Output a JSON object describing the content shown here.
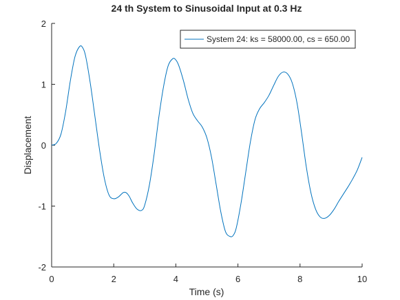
{
  "chart_data": {
    "type": "line",
    "title": "24 th System to Sinusoidal Input at 0.3 Hz",
    "xlabel": "Time (s)",
    "ylabel": "Displacement",
    "xlim": [
      0,
      10
    ],
    "ylim": [
      -2,
      2
    ],
    "xticks": [
      0,
      2,
      4,
      6,
      8,
      10
    ],
    "yticks": [
      -2,
      -1,
      0,
      1,
      2
    ],
    "xtick_labels": [
      "0",
      "2",
      "4",
      "6",
      "8",
      "10"
    ],
    "ytick_labels": [
      "-2",
      "-1",
      "0",
      "1",
      "2"
    ],
    "grid": false,
    "legend_position": "top-right",
    "series": [
      {
        "name": "System 24: ks = 58000.00, cs = 650.00",
        "color": "#0072bd",
        "x": [
          0,
          0.15,
          0.3,
          0.45,
          0.6,
          0.75,
          0.9,
          1.0,
          1.1,
          1.25,
          1.4,
          1.55,
          1.7,
          1.85,
          2.0,
          2.15,
          2.3,
          2.4,
          2.5,
          2.6,
          2.75,
          2.9,
          3.0,
          3.15,
          3.3,
          3.45,
          3.6,
          3.75,
          3.9,
          4.0,
          4.1,
          4.25,
          4.4,
          4.55,
          4.7,
          4.85,
          5.0,
          5.15,
          5.3,
          5.45,
          5.6,
          5.75,
          5.85,
          5.95,
          6.1,
          6.25,
          6.4,
          6.55,
          6.7,
          6.85,
          7.0,
          7.15,
          7.3,
          7.45,
          7.6,
          7.75,
          7.9,
          8.05,
          8.2,
          8.35,
          8.5,
          8.65,
          8.8,
          8.95,
          9.1,
          9.25,
          9.4,
          9.55,
          9.7,
          9.85,
          10.0
        ],
        "y": [
          0.0,
          0.03,
          0.18,
          0.55,
          1.05,
          1.45,
          1.62,
          1.6,
          1.45,
          1.0,
          0.45,
          -0.1,
          -0.55,
          -0.82,
          -0.88,
          -0.85,
          -0.78,
          -0.78,
          -0.84,
          -0.94,
          -1.05,
          -1.07,
          -0.98,
          -0.65,
          -0.15,
          0.45,
          0.95,
          1.3,
          1.42,
          1.4,
          1.3,
          1.05,
          0.75,
          0.52,
          0.4,
          0.3,
          0.12,
          -0.2,
          -0.65,
          -1.1,
          -1.42,
          -1.5,
          -1.48,
          -1.35,
          -0.95,
          -0.45,
          0.05,
          0.42,
          0.6,
          0.7,
          0.82,
          0.98,
          1.13,
          1.2,
          1.17,
          1.02,
          0.7,
          0.2,
          -0.35,
          -0.78,
          -1.05,
          -1.18,
          -1.2,
          -1.15,
          -1.05,
          -0.92,
          -0.8,
          -0.68,
          -0.55,
          -0.4,
          -0.2
        ]
      }
    ]
  }
}
